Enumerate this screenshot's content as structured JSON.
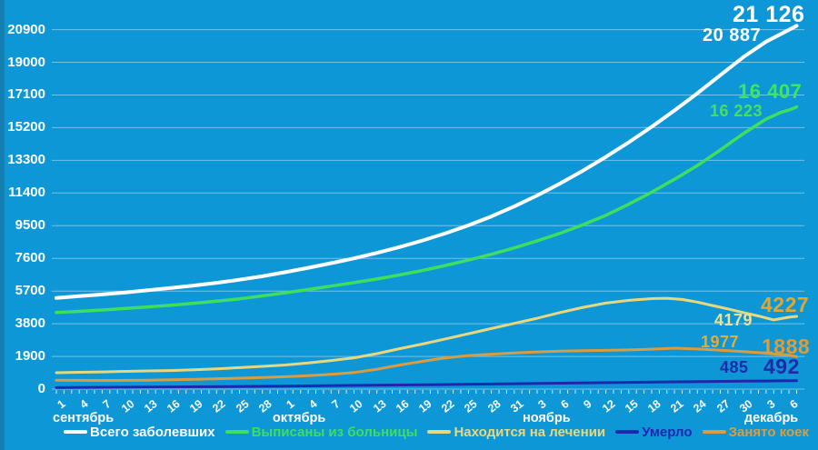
{
  "chart_data": {
    "type": "line",
    "title": "",
    "background": "#0E97D6",
    "grid": true,
    "grid_color": "rgba(255,255,255,0.42)",
    "tick_color": "rgba(255,255,255,0.8)",
    "axis_text_color": "#FFFFFF",
    "legend_position": "bottom",
    "y_axis": {
      "min": 0,
      "max": 20900,
      "step": 1900,
      "ticks": [
        "0",
        "1900",
        "3800",
        "5700",
        "7600",
        "9500",
        "11400",
        "13300",
        "15200",
        "17100",
        "19000",
        "20900"
      ]
    },
    "x_axis": {
      "total_days": 97,
      "day_ticks": [
        {
          "day": 0,
          "label": "1"
        },
        {
          "day": 3,
          "label": "4"
        },
        {
          "day": 6,
          "label": "7"
        },
        {
          "day": 9,
          "label": "10"
        },
        {
          "day": 12,
          "label": "13"
        },
        {
          "day": 15,
          "label": "16"
        },
        {
          "day": 18,
          "label": "19"
        },
        {
          "day": 21,
          "label": "22"
        },
        {
          "day": 24,
          "label": "25"
        },
        {
          "day": 27,
          "label": "28"
        },
        {
          "day": 30,
          "label": "1"
        },
        {
          "day": 33,
          "label": "4"
        },
        {
          "day": 36,
          "label": "7"
        },
        {
          "day": 39,
          "label": "10"
        },
        {
          "day": 42,
          "label": "13"
        },
        {
          "day": 45,
          "label": "16"
        },
        {
          "day": 48,
          "label": "19"
        },
        {
          "day": 51,
          "label": "22"
        },
        {
          "day": 54,
          "label": "25"
        },
        {
          "day": 57,
          "label": "28"
        },
        {
          "day": 60,
          "label": "31"
        },
        {
          "day": 63,
          "label": "3"
        },
        {
          "day": 66,
          "label": "6"
        },
        {
          "day": 69,
          "label": "9"
        },
        {
          "day": 72,
          "label": "12"
        },
        {
          "day": 75,
          "label": "15"
        },
        {
          "day": 78,
          "label": "18"
        },
        {
          "day": 81,
          "label": "21"
        },
        {
          "day": 84,
          "label": "24"
        },
        {
          "day": 87,
          "label": "27"
        },
        {
          "day": 90,
          "label": "30"
        },
        {
          "day": 93,
          "label": "3"
        },
        {
          "day": 96,
          "label": "6"
        }
      ],
      "months": [
        {
          "label": "сентябрь",
          "day": 0,
          "dx": -4
        },
        {
          "label": "октябрь",
          "day": 30,
          "dx": -14
        },
        {
          "label": "ноябрь",
          "day": 63,
          "dx": -16
        },
        {
          "label": "декабрь",
          "day": 93,
          "dx": -24
        }
      ]
    },
    "series": [
      {
        "id": "total",
        "name": "Всего заболевших",
        "color": "#FFFFFF",
        "width": 4,
        "labels": {
          "prev": {
            "text": "20 887",
            "color": "#FFFFFF"
          },
          "final": {
            "text": "21 126",
            "color": "#FFFFFF"
          }
        },
        "points": [
          [
            0,
            5300
          ],
          [
            3,
            5400
          ],
          [
            6,
            5500
          ],
          [
            9,
            5620
          ],
          [
            12,
            5750
          ],
          [
            15,
            5880
          ],
          [
            18,
            6020
          ],
          [
            21,
            6180
          ],
          [
            24,
            6360
          ],
          [
            27,
            6560
          ],
          [
            30,
            6800
          ],
          [
            33,
            7050
          ],
          [
            36,
            7320
          ],
          [
            39,
            7600
          ],
          [
            42,
            7920
          ],
          [
            45,
            8260
          ],
          [
            48,
            8640
          ],
          [
            51,
            9060
          ],
          [
            54,
            9520
          ],
          [
            57,
            10040
          ],
          [
            60,
            10620
          ],
          [
            63,
            11260
          ],
          [
            66,
            11950
          ],
          [
            69,
            12700
          ],
          [
            72,
            13500
          ],
          [
            75,
            14350
          ],
          [
            78,
            15250
          ],
          [
            81,
            16200
          ],
          [
            84,
            17200
          ],
          [
            87,
            18250
          ],
          [
            90,
            19300
          ],
          [
            93,
            20200
          ],
          [
            96,
            20887
          ],
          [
            97,
            21126
          ]
        ]
      },
      {
        "id": "discharged",
        "name": "Выписаны из больницы",
        "color": "#3EDE5F",
        "width": 3.5,
        "labels": {
          "prev": {
            "text": "16 223",
            "color": "#46DF62"
          },
          "final": {
            "text": "16 407",
            "color": "#3CE75E"
          }
        },
        "points": [
          [
            0,
            4450
          ],
          [
            3,
            4520
          ],
          [
            6,
            4600
          ],
          [
            9,
            4690
          ],
          [
            12,
            4780
          ],
          [
            15,
            4880
          ],
          [
            18,
            4990
          ],
          [
            21,
            5110
          ],
          [
            24,
            5250
          ],
          [
            27,
            5420
          ],
          [
            30,
            5600
          ],
          [
            33,
            5790
          ],
          [
            36,
            5990
          ],
          [
            39,
            6190
          ],
          [
            42,
            6400
          ],
          [
            45,
            6640
          ],
          [
            48,
            6900
          ],
          [
            51,
            7190
          ],
          [
            54,
            7500
          ],
          [
            57,
            7840
          ],
          [
            60,
            8210
          ],
          [
            63,
            8620
          ],
          [
            66,
            9060
          ],
          [
            69,
            9550
          ],
          [
            72,
            10100
          ],
          [
            75,
            10750
          ],
          [
            78,
            11450
          ],
          [
            81,
            12200
          ],
          [
            84,
            13000
          ],
          [
            87,
            13900
          ],
          [
            90,
            14850
          ],
          [
            93,
            15700
          ],
          [
            95,
            16100
          ],
          [
            96,
            16223
          ],
          [
            97,
            16407
          ]
        ]
      },
      {
        "id": "treatment",
        "name": "Находится на лечении",
        "color": "#E7D87E",
        "width": 3,
        "labels": {
          "prev": {
            "text": "4179",
            "color": "#EDE09A"
          },
          "final": {
            "text": "4227",
            "color": "#E4A72E"
          }
        },
        "points": [
          [
            0,
            950
          ],
          [
            3,
            980
          ],
          [
            6,
            1000
          ],
          [
            9,
            1030
          ],
          [
            12,
            1055
          ],
          [
            15,
            1080
          ],
          [
            18,
            1120
          ],
          [
            21,
            1180
          ],
          [
            24,
            1250
          ],
          [
            27,
            1320
          ],
          [
            30,
            1400
          ],
          [
            33,
            1520
          ],
          [
            36,
            1660
          ],
          [
            39,
            1820
          ],
          [
            42,
            2060
          ],
          [
            45,
            2350
          ],
          [
            48,
            2620
          ],
          [
            51,
            2920
          ],
          [
            54,
            3220
          ],
          [
            57,
            3520
          ],
          [
            60,
            3820
          ],
          [
            63,
            4120
          ],
          [
            66,
            4450
          ],
          [
            69,
            4750
          ],
          [
            72,
            5000
          ],
          [
            75,
            5160
          ],
          [
            78,
            5260
          ],
          [
            80,
            5280
          ],
          [
            82,
            5210
          ],
          [
            84,
            5060
          ],
          [
            86,
            4860
          ],
          [
            88,
            4660
          ],
          [
            90,
            4450
          ],
          [
            92,
            4250
          ],
          [
            94,
            4020
          ],
          [
            96,
            4179
          ],
          [
            97,
            4227
          ]
        ]
      },
      {
        "id": "died",
        "name": "Умерло",
        "color": "#1E27AE",
        "width": 3,
        "labels": {
          "prev": {
            "text": "485",
            "color": "#1E2AA8"
          },
          "final": {
            "text": "492",
            "color": "#1E2AA8"
          }
        },
        "points": [
          [
            0,
            85
          ],
          [
            10,
            110
          ],
          [
            20,
            140
          ],
          [
            30,
            175
          ],
          [
            40,
            215
          ],
          [
            50,
            260
          ],
          [
            60,
            310
          ],
          [
            70,
            365
          ],
          [
            80,
            415
          ],
          [
            85,
            438
          ],
          [
            90,
            460
          ],
          [
            93,
            472
          ],
          [
            96,
            485
          ],
          [
            97,
            492
          ]
        ]
      },
      {
        "id": "beds",
        "name": "Занято коек",
        "color": "#D99C40",
        "width": 3,
        "labels": {
          "prev": {
            "text": "1977",
            "color": "#E0AC3C"
          },
          "final": {
            "text": "1888",
            "color": "#E79A2B"
          }
        },
        "points": [
          [
            0,
            520
          ],
          [
            3,
            510
          ],
          [
            6,
            500
          ],
          [
            9,
            505
          ],
          [
            12,
            520
          ],
          [
            15,
            545
          ],
          [
            18,
            570
          ],
          [
            21,
            600
          ],
          [
            24,
            635
          ],
          [
            27,
            670
          ],
          [
            30,
            720
          ],
          [
            33,
            780
          ],
          [
            36,
            860
          ],
          [
            39,
            960
          ],
          [
            42,
            1150
          ],
          [
            45,
            1400
          ],
          [
            48,
            1620
          ],
          [
            51,
            1820
          ],
          [
            54,
            1950
          ],
          [
            57,
            2030
          ],
          [
            60,
            2100
          ],
          [
            63,
            2160
          ],
          [
            66,
            2210
          ],
          [
            69,
            2230
          ],
          [
            72,
            2250
          ],
          [
            75,
            2280
          ],
          [
            78,
            2320
          ],
          [
            81,
            2380
          ],
          [
            84,
            2330
          ],
          [
            87,
            2260
          ],
          [
            90,
            2180
          ],
          [
            92,
            2120
          ],
          [
            94,
            2040
          ],
          [
            96,
            1977
          ],
          [
            97,
            1888
          ]
        ]
      }
    ]
  }
}
